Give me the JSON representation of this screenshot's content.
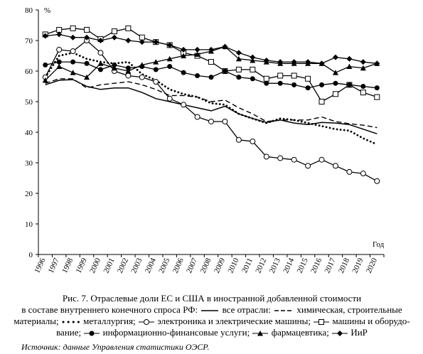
{
  "chart_data": {
    "type": "line",
    "unit_label": "%",
    "xlabel": "Год",
    "ylim": [
      0,
      80
    ],
    "y_ticks": [
      0,
      10,
      20,
      30,
      40,
      50,
      60,
      70,
      80
    ],
    "x": [
      1996,
      1997,
      1998,
      1999,
      2000,
      2001,
      2002,
      2003,
      2004,
      2005,
      2006,
      2007,
      2008,
      2009,
      2010,
      2011,
      2012,
      2013,
      2014,
      2015,
      2016,
      2017,
      2018,
      2019,
      2020
    ],
    "series": [
      {
        "name": "все отрасли",
        "style": "solid",
        "color": "#000000",
        "values": [
          55.5,
          57,
          57.2,
          55,
          54,
          54.5,
          54.5,
          53,
          51,
          50,
          49,
          48,
          47,
          48.5,
          46,
          44.5,
          43.2,
          44,
          43,
          42.5,
          43.2,
          43,
          42.5,
          41,
          39.5
        ]
      },
      {
        "name": "химическая, строительные материалы",
        "style": "dashed",
        "color": "#000000",
        "values": [
          56,
          57.5,
          57.5,
          54.5,
          55.5,
          56,
          56.5,
          55.5,
          54,
          52,
          52,
          51.5,
          50,
          50.5,
          48,
          46,
          43.5,
          44,
          44,
          44,
          45,
          43.5,
          42.8,
          42.3,
          41.5
        ]
      },
      {
        "name": "металлургия",
        "style": "dotted",
        "color": "#000000",
        "values": [
          58,
          65,
          66,
          64,
          63,
          62.5,
          63,
          59,
          57,
          54,
          52.5,
          51.5,
          49.5,
          49,
          46,
          44.5,
          43,
          44.5,
          44,
          43,
          42,
          41,
          40.5,
          38,
          36
        ]
      },
      {
        "name": "электроника и электрические машины",
        "style": "circle-open",
        "color": "#000000",
        "values": [
          58,
          67,
          66.5,
          70,
          66,
          60,
          58.5,
          58,
          56.5,
          51,
          49,
          45,
          43.5,
          43.5,
          37.5,
          37,
          32,
          31.5,
          31,
          29,
          31,
          29,
          27,
          26.5,
          24
        ]
      },
      {
        "name": "машины и оборудование",
        "style": "square-open",
        "color": "#000000",
        "values": [
          72,
          73.5,
          74,
          73.5,
          70.5,
          73,
          74,
          71,
          69.5,
          68.5,
          66,
          65,
          63,
          60,
          60.5,
          60.5,
          57.5,
          58.5,
          58.5,
          57.5,
          50,
          52.5,
          55.5,
          53,
          51.5
        ]
      },
      {
        "name": "информационно-финансовые услуги",
        "style": "circle-filled",
        "color": "#000000",
        "values": [
          62,
          63,
          63,
          62.5,
          60.5,
          62,
          61,
          61.5,
          60.5,
          61.5,
          59.5,
          58.5,
          58,
          60,
          58,
          57.5,
          56,
          56,
          55.5,
          54.5,
          55.5,
          56,
          55.5,
          55,
          54.5
        ]
      },
      {
        "name": "фармацевтика",
        "style": "triangle-filled",
        "color": "#000000",
        "values": [
          57,
          61.5,
          59.5,
          58,
          62.5,
          61,
          60,
          62,
          63,
          64,
          65,
          65.5,
          66.5,
          68,
          64,
          63.5,
          63,
          62.5,
          62.5,
          62.5,
          62.5,
          59.5,
          61.5,
          61,
          62.5
        ]
      },
      {
        "name": "ИиР",
        "style": "diamond-filled",
        "color": "#000000",
        "values": [
          71.5,
          72,
          71,
          71,
          70,
          71,
          70,
          69.5,
          69.5,
          68.5,
          67,
          67,
          67,
          68,
          66,
          64.5,
          63.5,
          63,
          63,
          63,
          62.5,
          64.5,
          64,
          63,
          62.5
        ]
      }
    ]
  },
  "caption": {
    "line1": "Рис. 7. Отраслевые доли ЕС и США в иностранной добавленной стоимости",
    "line2_prefix": "в составе внутреннего конечного спроса РФ:",
    "line2_suffix": "химическая, строительные",
    "l_all": "все отрасли:",
    "l_metal": "металлургия;",
    "l_elec": "электроника и электрические машины;",
    "l_mach_a": "машины и оборудо-",
    "l_mach_b": "вание;",
    "l_info": "информационно-финансовые услуги;",
    "l_pharma": "фармацевтика;",
    "l_rd": "ИиР",
    "materials": "материалы;"
  },
  "source": "Источник: данные Управления статистики ОЭСР."
}
